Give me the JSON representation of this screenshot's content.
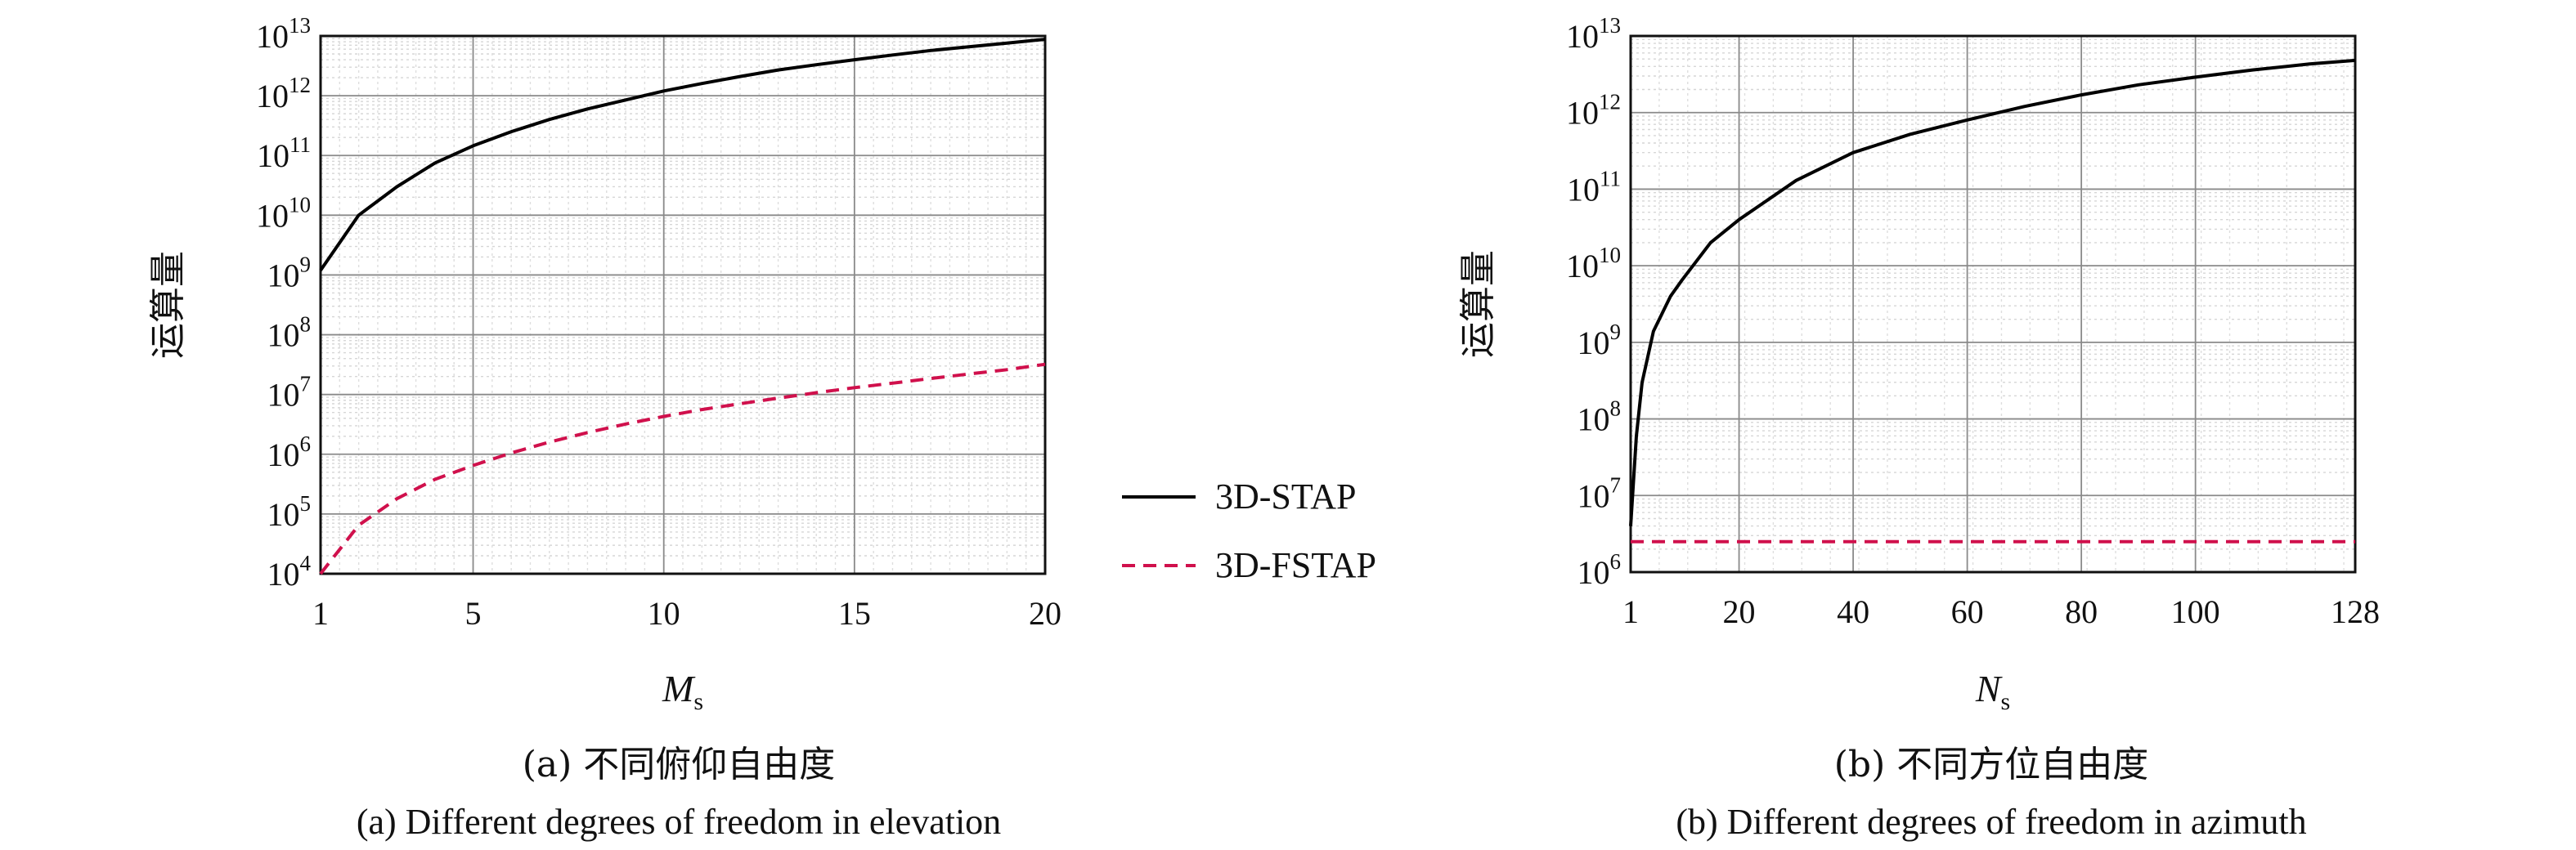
{
  "chart_data": [
    {
      "type": "line",
      "panel": "a",
      "xlabel": "M",
      "xlabel_sub": "s",
      "ylabel": "运算量",
      "yscale": "log",
      "xlim": [
        1,
        20
      ],
      "ylim": [
        10000,
        10000000000000
      ],
      "xticks": [
        1,
        5,
        10,
        15,
        20
      ],
      "yticks": [
        {
          "base": "10",
          "exp": "4",
          "value": 10000
        },
        {
          "base": "10",
          "exp": "5",
          "value": 100000
        },
        {
          "base": "10",
          "exp": "6",
          "value": 1000000
        },
        {
          "base": "10",
          "exp": "7",
          "value": 10000000
        },
        {
          "base": "10",
          "exp": "8",
          "value": 100000000
        },
        {
          "base": "10",
          "exp": "9",
          "value": 1000000000
        },
        {
          "base": "10",
          "exp": "10",
          "value": 10000000000
        },
        {
          "base": "10",
          "exp": "11",
          "value": 100000000000
        },
        {
          "base": "10",
          "exp": "12",
          "value": 1000000000000
        },
        {
          "base": "10",
          "exp": "13",
          "value": 10000000000000
        }
      ],
      "grid": true,
      "series": [
        {
          "name": "3D-STAP",
          "color": "#000000",
          "dash": "solid",
          "x": [
            1,
            2,
            3,
            4,
            5,
            6,
            7,
            8,
            9,
            10,
            11,
            12,
            13,
            14,
            15,
            16,
            17,
            18,
            19,
            20
          ],
          "y": [
            1200000000.0,
            10000000000.0,
            30000000000.0,
            75000000000.0,
            145000000000.0,
            250000000000.0,
            400000000000.0,
            600000000000.0,
            850000000000.0,
            1200000000000.0,
            1600000000000.0,
            2100000000000.0,
            2700000000000.0,
            3300000000000.0,
            4000000000000.0,
            4800000000000.0,
            5700000000000.0,
            6600000000000.0,
            7600000000000.0,
            8800000000000.0
          ]
        },
        {
          "name": "3D-FSTAP",
          "color": "#d0104c",
          "dash": "dashed",
          "x": [
            1,
            2,
            3,
            4,
            5,
            6,
            7,
            8,
            9,
            10,
            11,
            12,
            13,
            14,
            15,
            16,
            17,
            18,
            19,
            20
          ],
          "y": [
            10000.0,
            65000.0,
            180000.0,
            380000.0,
            650000.0,
            1050000.0,
            1600000.0,
            2300000.0,
            3200000.0,
            4300000.0,
            5600000.0,
            7000000.0,
            8700000.0,
            10700000.0,
            13000000.0,
            15500000.0,
            18500000.0,
            22000000.0,
            26000000.0,
            32000000.0
          ]
        }
      ]
    },
    {
      "type": "line",
      "panel": "b",
      "xlabel": "N",
      "xlabel_sub": "s",
      "ylabel": "运算量",
      "yscale": "log",
      "xlim": [
        1,
        128
      ],
      "ylim": [
        1000000,
        10000000000000
      ],
      "xticks": [
        1,
        20,
        40,
        60,
        80,
        100,
        128
      ],
      "yticks": [
        {
          "base": "10",
          "exp": "6",
          "value": 1000000
        },
        {
          "base": "10",
          "exp": "7",
          "value": 10000000
        },
        {
          "base": "10",
          "exp": "8",
          "value": 100000000
        },
        {
          "base": "10",
          "exp": "9",
          "value": 1000000000
        },
        {
          "base": "10",
          "exp": "10",
          "value": 10000000000
        },
        {
          "base": "10",
          "exp": "11",
          "value": 100000000000
        },
        {
          "base": "10",
          "exp": "12",
          "value": 1000000000000
        },
        {
          "base": "10",
          "exp": "13",
          "value": 10000000000000
        }
      ],
      "grid": true,
      "series": [
        {
          "name": "3D-STAP",
          "color": "#000000",
          "dash": "solid",
          "x": [
            1,
            2,
            3,
            5,
            8,
            10,
            15,
            20,
            30,
            40,
            50,
            60,
            70,
            80,
            90,
            100,
            110,
            120,
            128
          ],
          "y": [
            4000000.0,
            60000000.0,
            300000000.0,
            1400000000.0,
            4000000000.0,
            6500000000.0,
            20000000000.0,
            40000000000.0,
            130000000000.0,
            300000000000.0,
            520000000000.0,
            800000000000.0,
            1200000000000.0,
            1700000000000.0,
            2300000000000.0,
            2900000000000.0,
            3600000000000.0,
            4300000000000.0,
            4800000000000.0
          ]
        },
        {
          "name": "3D-FSTAP",
          "color": "#d0104c",
          "dash": "dashed",
          "x": [
            1,
            128
          ],
          "y": [
            2500000.0,
            2500000.0
          ]
        }
      ]
    }
  ],
  "legend": {
    "placement": "between panels",
    "items": [
      {
        "label": "3D-STAP",
        "color": "#000000",
        "dash": "solid"
      },
      {
        "label": "3D-FSTAP",
        "color": "#d0104c",
        "dash": "dashed"
      }
    ]
  },
  "captions": {
    "a_cn": "(a) 不同俯仰自由度",
    "a_en": "(a) Different degrees of freedom in elevation",
    "b_cn": "(b) 不同方位自由度",
    "b_en": "(b) Different degrees of freedom in azimuth"
  }
}
